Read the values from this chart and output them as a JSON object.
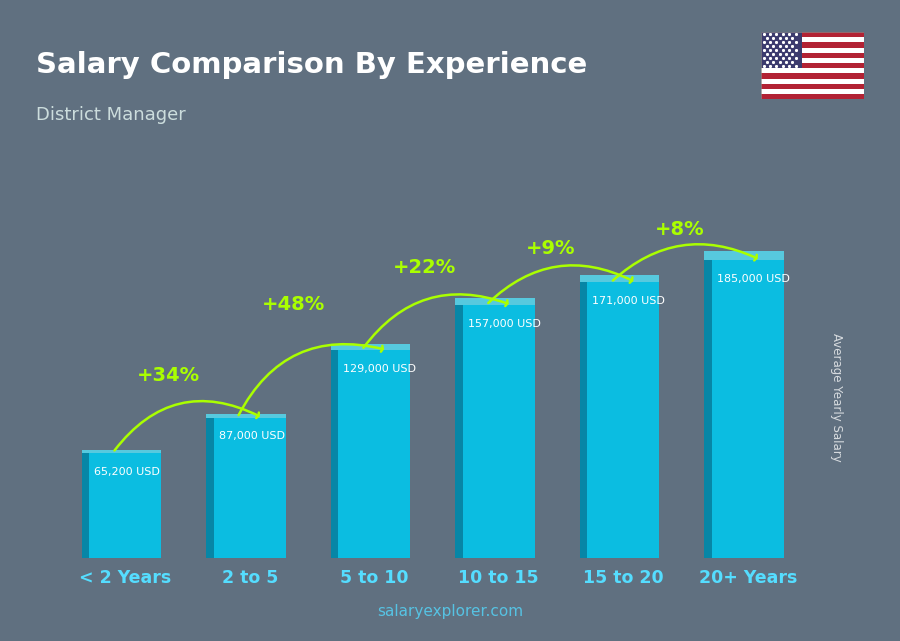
{
  "title": "Salary Comparison By Experience",
  "subtitle": "District Manager",
  "categories": [
    "< 2 Years",
    "2 to 5",
    "5 to 10",
    "10 to 15",
    "15 to 20",
    "20+ Years"
  ],
  "values": [
    65200,
    87000,
    129000,
    157000,
    171000,
    185000
  ],
  "value_labels": [
    "65,200 USD",
    "87,000 USD",
    "129,000 USD",
    "157,000 USD",
    "171,000 USD",
    "185,000 USD"
  ],
  "pct_labels": [
    "+34%",
    "+48%",
    "+22%",
    "+9%",
    "+8%"
  ],
  "bar_color_main": "#00c8ef",
  "bar_color_dark": "#0088aa",
  "bar_color_light": "#55e8ff",
  "bg_color": "#607080",
  "title_color": "#ffffff",
  "subtitle_color": "#ccdddd",
  "pct_color": "#aaff00",
  "value_label_color": "#dddddd",
  "xtick_color": "#55ddff",
  "ylabel_text": "Average Yearly Salary",
  "watermark": "salaryexplorer.com",
  "watermark_color": "#55ccee",
  "ylim_max": 215000,
  "bar_width": 0.58
}
